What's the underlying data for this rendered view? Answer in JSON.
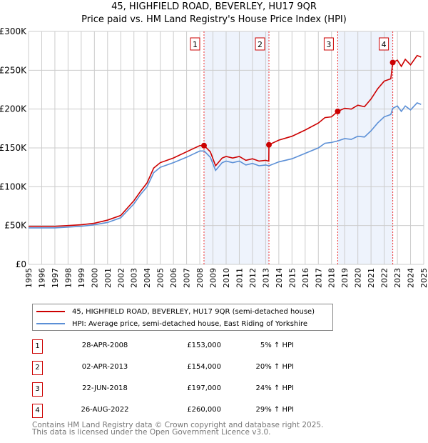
{
  "chart_data": {
    "type": "line",
    "title": "45, HIGHFIELD ROAD, BEVERLEY, HU17 9QR",
    "subtitle": "Price paid vs. HM Land Registry's House Price Index (HPI)",
    "xlim": [
      1995,
      2025
    ],
    "ylim": [
      0,
      300000
    ],
    "y_ticks": [
      {
        "v": 0,
        "label": "£0"
      },
      {
        "v": 50000,
        "label": "£50K"
      },
      {
        "v": 100000,
        "label": "£100K"
      },
      {
        "v": 150000,
        "label": "£150K"
      },
      {
        "v": 200000,
        "label": "£200K"
      },
      {
        "v": 250000,
        "label": "£250K"
      },
      {
        "v": 300000,
        "label": "£300K"
      }
    ],
    "x_ticks": [
      "1995",
      "1996",
      "1997",
      "1998",
      "1999",
      "2000",
      "2001",
      "2002",
      "2003",
      "2004",
      "2005",
      "2006",
      "2007",
      "2008",
      "2009",
      "2010",
      "2011",
      "2012",
      "2013",
      "2014",
      "2015",
      "2016",
      "2017",
      "2018",
      "2019",
      "2020",
      "2021",
      "2022",
      "2023",
      "2024",
      "2025"
    ],
    "grid": true,
    "x": [
      1995,
      1996,
      1997,
      1998,
      1999,
      2000,
      2001,
      2002,
      2003,
      2003.5,
      2004,
      2004.5,
      2005,
      2006,
      2007,
      2007.5,
      2008,
      2008.33,
      2008.8,
      2009.2,
      2009.7,
      2010,
      2010.5,
      2011,
      2011.5,
      2012,
      2012.5,
      2013,
      2013.24,
      2013.25,
      2014,
      2015,
      2016,
      2017,
      2017.5,
      2018,
      2018.47,
      2019,
      2019.5,
      2020,
      2020.5,
      2021,
      2021.5,
      2022,
      2022.5,
      2022.65,
      2023,
      2023.3,
      2023.6,
      2024,
      2024.5,
      2024.8
    ],
    "series": [
      {
        "name": "45, HIGHFIELD ROAD, BEVERLEY, HU17 9QR (semi-detached house)",
        "color": "#cc0000",
        "values": [
          49,
          49,
          49,
          50,
          51,
          53,
          57,
          63,
          82,
          94,
          105,
          124,
          131,
          137,
          145,
          149,
          153,
          153,
          145,
          127,
          137,
          139,
          137,
          139,
          134,
          136,
          133,
          134,
          133,
          154,
          160,
          165,
          173,
          182,
          189,
          190,
          197,
          201,
          200,
          205,
          203,
          213,
          226,
          236,
          239,
          260,
          263,
          255,
          264,
          257,
          269,
          267
        ]
      },
      {
        "name": "HPI: Average price, semi-detached house, East Riding of Yorkshire",
        "color": "#5b8fd6",
        "values": [
          47,
          47,
          47,
          48,
          49,
          51,
          54,
          60,
          78,
          90,
          100,
          118,
          125,
          131,
          138,
          142,
          146,
          146,
          138,
          121,
          131,
          133,
          131,
          133,
          128,
          130,
          127,
          128,
          127,
          127,
          132,
          136,
          143,
          150,
          156,
          157,
          159,
          162,
          161,
          165,
          164,
          172,
          182,
          190,
          193,
          201,
          204,
          197,
          204,
          199,
          208,
          206
        ]
      }
    ],
    "value_unit": "£K",
    "sales": [
      {
        "n": "1",
        "x": 2008.32,
        "y": 153,
        "date": "28-APR-2008",
        "price": "£153,000",
        "hpi": "5% ↑ HPI"
      },
      {
        "n": "2",
        "x": 2013.25,
        "y": 154,
        "date": "02-APR-2013",
        "price": "£154,000",
        "hpi": "20% ↑ HPI"
      },
      {
        "n": "3",
        "x": 2018.47,
        "y": 197,
        "date": "22-JUN-2018",
        "price": "£197,000",
        "hpi": "24% ↑ HPI"
      },
      {
        "n": "4",
        "x": 2022.65,
        "y": 260,
        "date": "26-AUG-2022",
        "price": "£260,000",
        "hpi": "29% ↑ HPI"
      }
    ],
    "shaded_ranges": [
      [
        2008.32,
        2013.25
      ],
      [
        2018.47,
        2022.65
      ]
    ],
    "legend_position": "below"
  },
  "footer": [
    "Contains HM Land Registry data © Crown copyright and database right 2025.",
    "This data is licensed under the Open Government Licence v3.0."
  ]
}
